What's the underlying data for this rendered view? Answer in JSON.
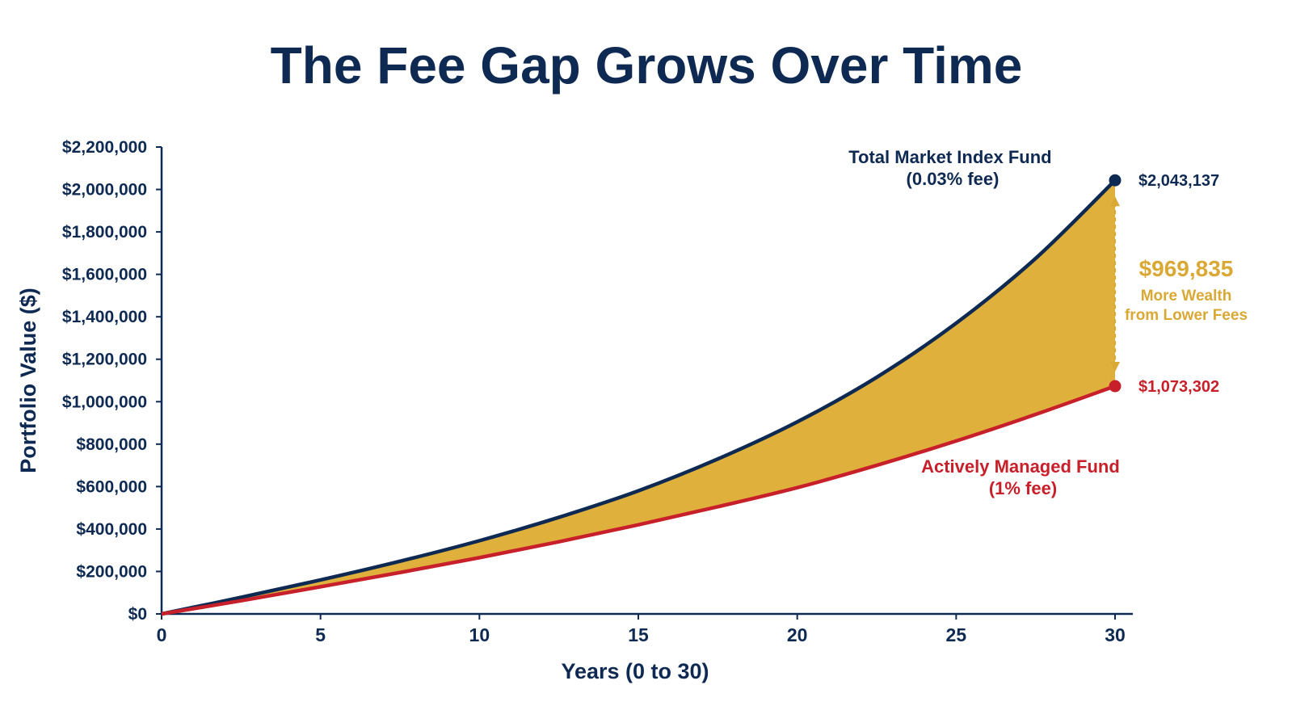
{
  "colors": {
    "navy": "#0f2a52",
    "red": "#c8202a",
    "gold": "#e0b03c",
    "gold_text": "#d9a835"
  },
  "chart_data": {
    "type": "area",
    "title": "The Fee Gap Grows Over Time",
    "xlabel": "Years (0 to 30)",
    "ylabel": "Portfolio Value ($)",
    "xlim": [
      0,
      30
    ],
    "ylim": [
      0,
      2200000
    ],
    "x_ticks": [
      0,
      5,
      10,
      15,
      20,
      25,
      30
    ],
    "x_tick_labels": [
      "0",
      "5",
      "10",
      "15",
      "20",
      "25",
      "30"
    ],
    "y_ticks": [
      0,
      200000,
      400000,
      600000,
      800000,
      1000000,
      1200000,
      1400000,
      1600000,
      1800000,
      2000000,
      2200000
    ],
    "y_tick_labels": [
      "$0",
      "$200,000",
      "$400,000",
      "$600,000",
      "$800,000",
      "$1,000,000",
      "$1,200,000",
      "$1,400,000",
      "$1,600,000",
      "$1,800,000",
      "$2,000,000",
      "$2,200,000"
    ],
    "grid": false,
    "x": [
      0,
      2.5,
      5,
      7.5,
      10,
      12.5,
      15,
      17.5,
      20,
      22.5,
      25,
      27.5,
      30
    ],
    "series": [
      {
        "name_lines": [
          "Total Market Index Fund",
          "(0.03% fee)"
        ],
        "color_key": "navy",
        "values": [
          0,
          78000,
          160000,
          248000,
          345000,
          455000,
          580000,
          730000,
          905000,
          1115000,
          1370000,
          1675000,
          2043137
        ],
        "end_label": "$2,043,137"
      },
      {
        "name_lines": [
          "Actively Managed Fund",
          "(1% fee)"
        ],
        "color_key": "red",
        "values": [
          0,
          62000,
          128000,
          195000,
          265000,
          340000,
          420000,
          505000,
          595000,
          700000,
          815000,
          940000,
          1073302
        ],
        "end_label": "$1,073,302"
      }
    ],
    "gap_fill_color_key": "gold",
    "gap_annotation": {
      "value": "$969,835",
      "lines": [
        "More Wealth",
        "from Lower Fees"
      ]
    }
  }
}
